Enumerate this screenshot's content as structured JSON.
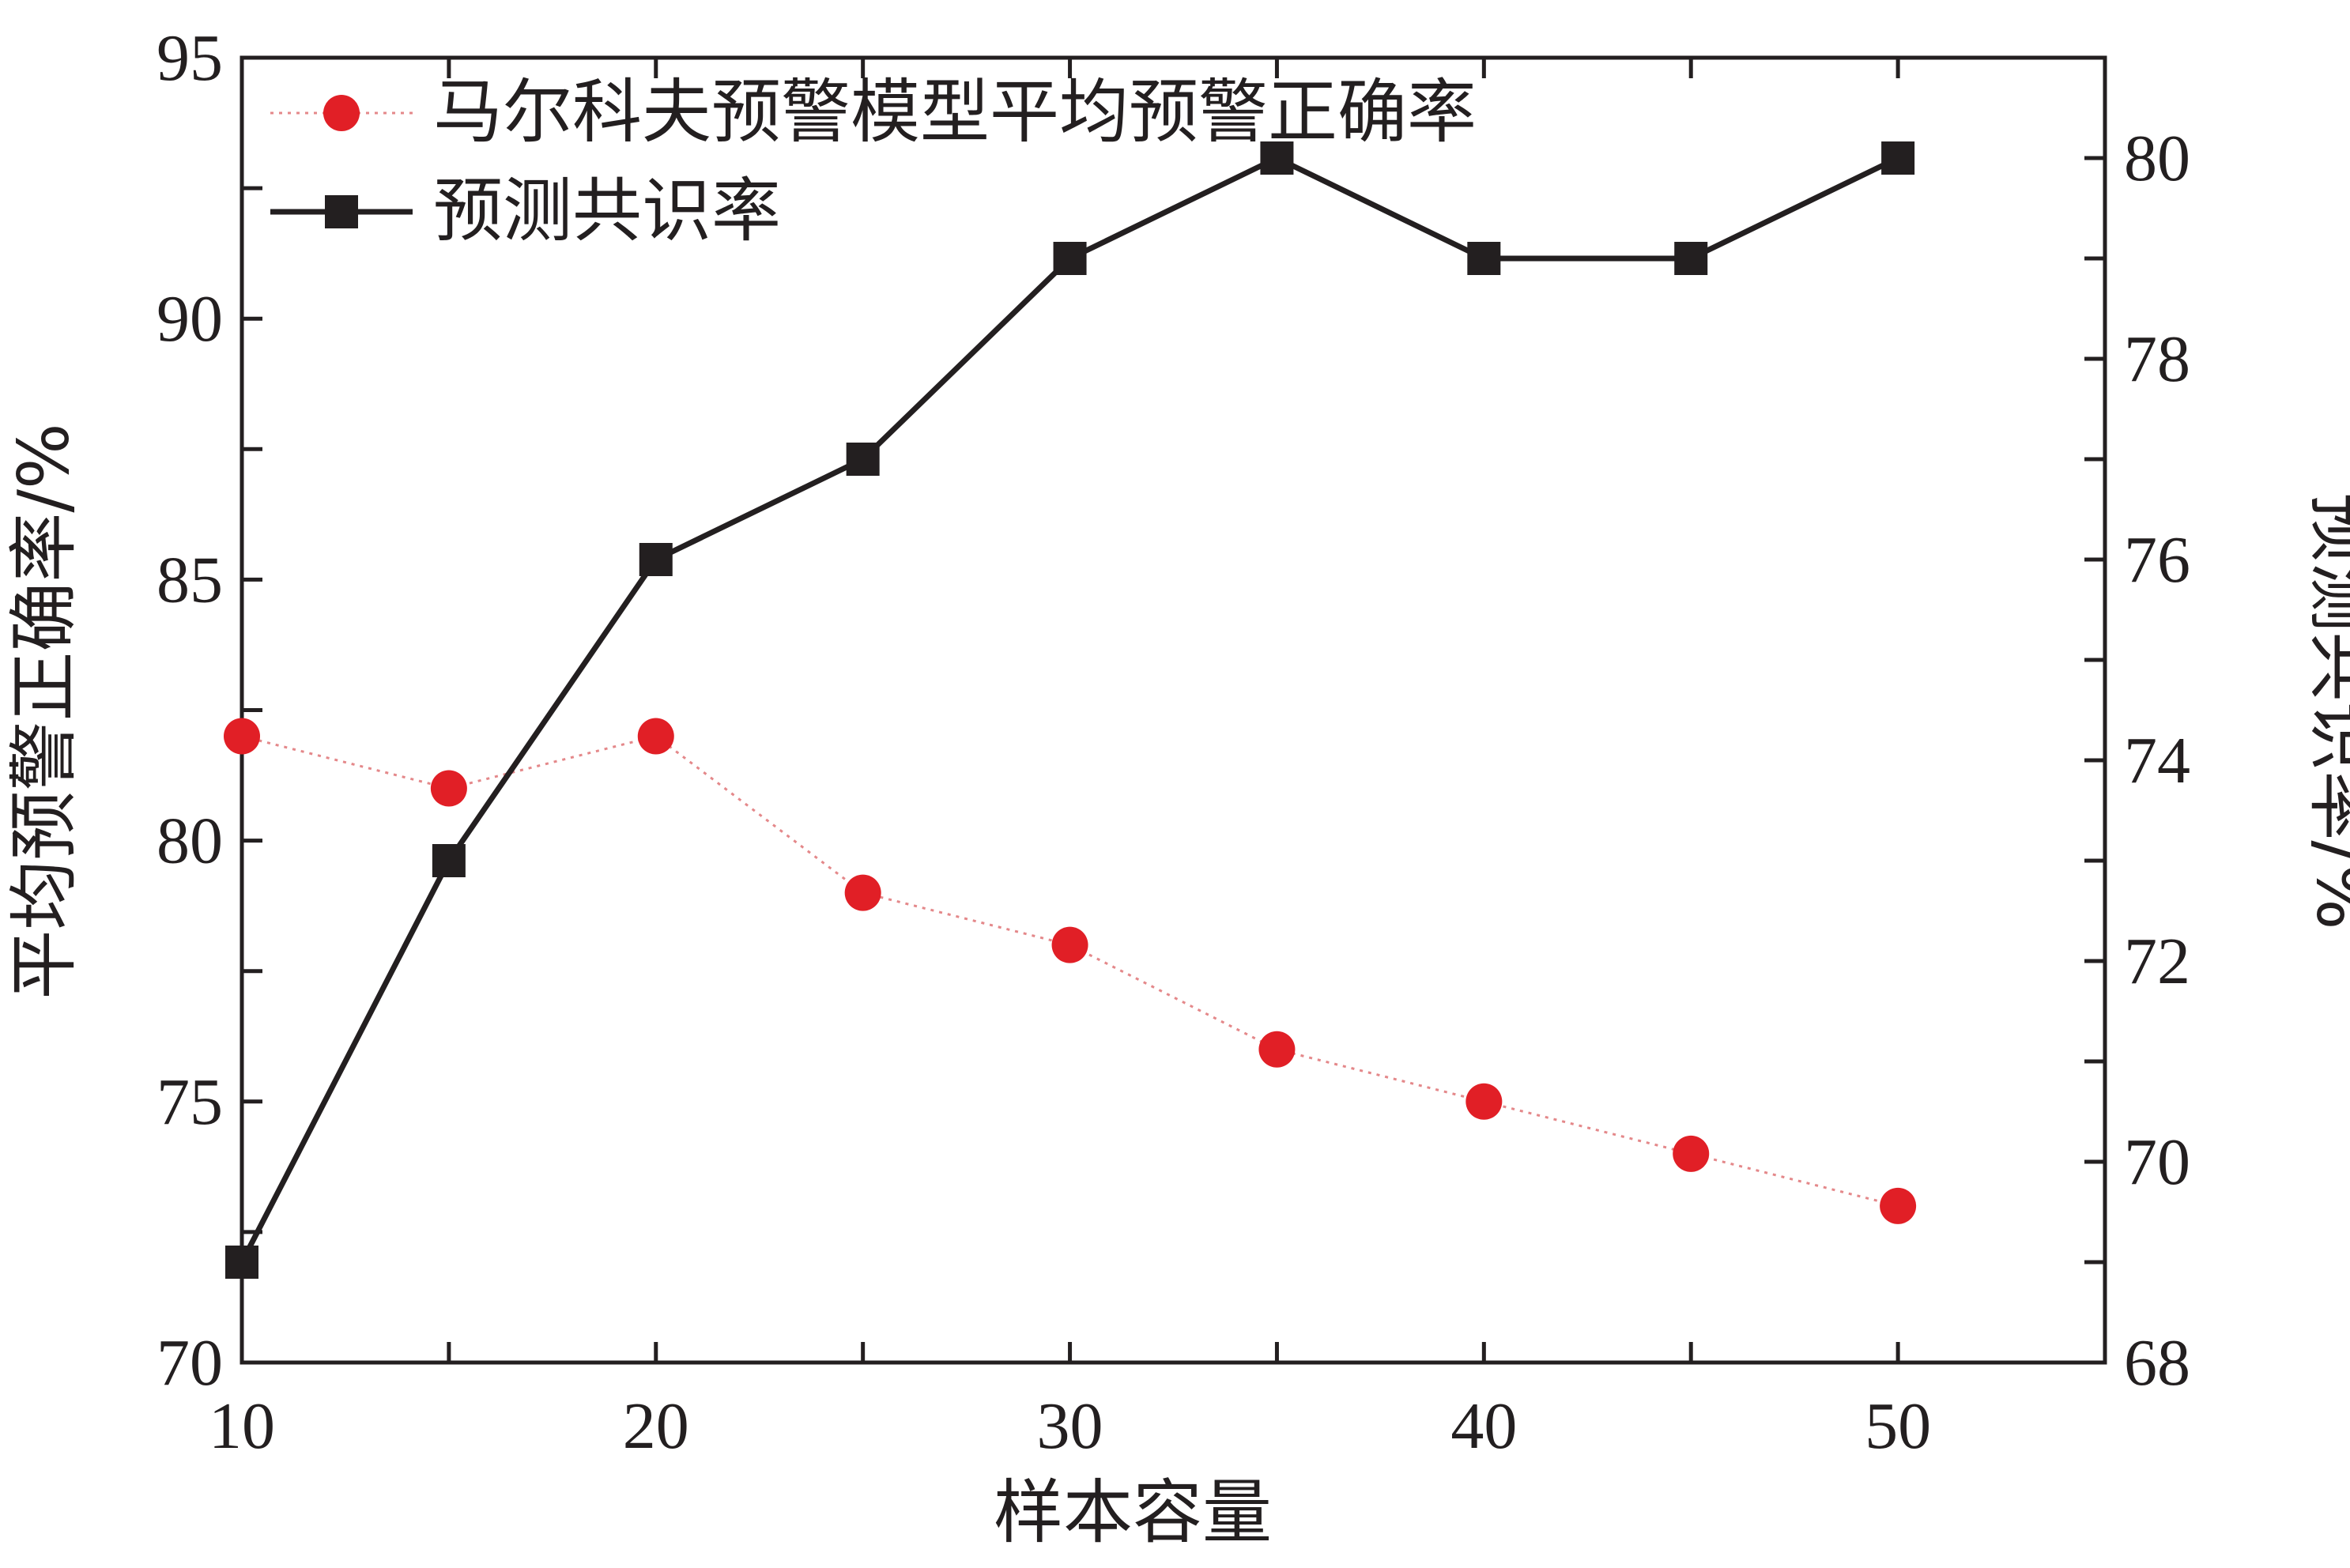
{
  "chart_data": {
    "type": "line",
    "x": [
      10,
      15,
      20,
      25,
      30,
      35,
      40,
      45,
      50
    ],
    "xlabel": "样本容量",
    "xlim": [
      10,
      55
    ],
    "xticks": [
      10,
      20,
      30,
      40,
      50
    ],
    "y_left": {
      "label": "平均预警正确率/%",
      "lim": [
        70,
        95
      ],
      "ticks": [
        70,
        75,
        80,
        85,
        90,
        95
      ]
    },
    "y_right": {
      "label": "预测共识率/%",
      "lim": [
        68,
        81
      ],
      "ticks": [
        68,
        70,
        72,
        74,
        76,
        78,
        80
      ]
    },
    "series": [
      {
        "name": "马尔科夫预警模型平均预警正确率",
        "axis": "left",
        "marker": "circle",
        "line": "dotted",
        "color": "#e11f26",
        "values": [
          82,
          81,
          82,
          79,
          78,
          76,
          75,
          74,
          73
        ]
      },
      {
        "name": "预测共识率",
        "axis": "right",
        "marker": "square",
        "line": "solid",
        "color": "#231f20",
        "values": [
          69,
          73,
          76,
          77,
          79,
          80,
          79,
          79,
          80
        ]
      }
    ],
    "legend": "top-left",
    "grid": false
  }
}
